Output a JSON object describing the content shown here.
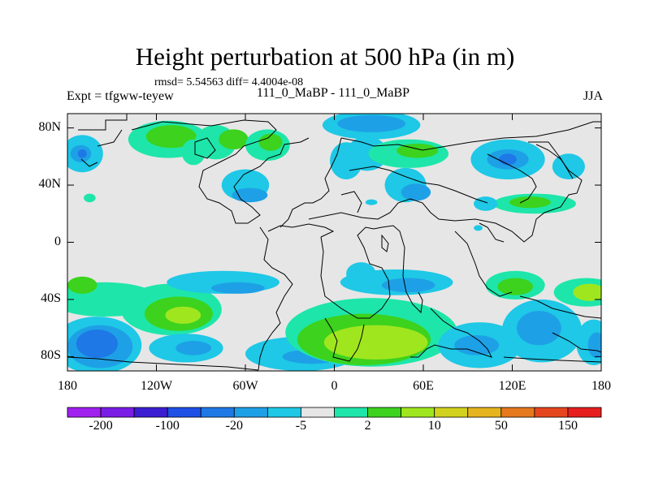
{
  "header": {
    "title": "Height perturbation at 500 hPa (in m)",
    "stats": "rmsd= 5.54563 diff= 4.4004e-08",
    "left_label": "Expt = tfgww-teyew",
    "center_label": "111_0_MaBP - 111_0_MaBP",
    "right_label": "JJA"
  },
  "chart_data": {
    "type": "heatmap",
    "title": "Height perturbation at 500 hPa (in m)",
    "xlabel": "",
    "ylabel": "",
    "xlim": [
      -180,
      180
    ],
    "ylim": [
      -90,
      90
    ],
    "x_ticks": [
      {
        "value": -180,
        "label": "180"
      },
      {
        "value": -120,
        "label": "120W"
      },
      {
        "value": -60,
        "label": "60W"
      },
      {
        "value": 0,
        "label": "0"
      },
      {
        "value": 60,
        "label": "60E"
      },
      {
        "value": 120,
        "label": "120E"
      },
      {
        "value": 180,
        "label": "180"
      }
    ],
    "y_ticks": [
      {
        "value": 80,
        "label": "80N"
      },
      {
        "value": 40,
        "label": "40N"
      },
      {
        "value": 0,
        "label": "0"
      },
      {
        "value": -40,
        "label": "40S"
      },
      {
        "value": -80,
        "label": "80S"
      }
    ],
    "colorbar": {
      "colors": [
        "#a020f0",
        "#7a1ee6",
        "#3c1ed2",
        "#1e50e6",
        "#1e78e6",
        "#1ea0e6",
        "#1ec8e6",
        "#e6e6e6",
        "#1ee6aa",
        "#3cd21e",
        "#a0e61e",
        "#d2d21e",
        "#e6b41e",
        "#e6781e",
        "#e6461e",
        "#e61e1e"
      ],
      "tick_labels": [
        "-200",
        "-100",
        "-20",
        "-5",
        "2",
        "10",
        "50",
        "150"
      ],
      "tick_boundary_index": [
        1,
        3,
        5,
        7,
        9,
        11,
        13,
        15
      ]
    },
    "contour_blobs": [
      {
        "lon": -170,
        "lat": 62,
        "rx": 14,
        "ry": 13,
        "level": 6
      },
      {
        "lon": -171,
        "lat": 62,
        "rx": 7,
        "ry": 6,
        "level": 5
      },
      {
        "lon": -170,
        "lat": 62,
        "rx": 3,
        "ry": 3,
        "level": 4
      },
      {
        "lon": -112,
        "lat": 72,
        "rx": 27,
        "ry": 13,
        "level": 8
      },
      {
        "lon": -110,
        "lat": 74,
        "rx": 17,
        "ry": 8,
        "level": 9
      },
      {
        "lon": -95,
        "lat": 63,
        "rx": 8,
        "ry": 9,
        "level": 8
      },
      {
        "lon": -80,
        "lat": 70,
        "rx": 14,
        "ry": 12,
        "level": 8
      },
      {
        "lon": -68,
        "lat": 72,
        "rx": 10,
        "ry": 7,
        "level": 9
      },
      {
        "lon": -45,
        "lat": 68,
        "rx": 15,
        "ry": 11,
        "level": 8
      },
      {
        "lon": -43,
        "lat": 70,
        "rx": 8,
        "ry": 6,
        "level": 9
      },
      {
        "lon": -60,
        "lat": 40,
        "rx": 16,
        "ry": 11,
        "level": 6
      },
      {
        "lon": -57,
        "lat": 33,
        "rx": 12,
        "ry": 5,
        "level": 5
      },
      {
        "lon": -165,
        "lat": 31,
        "rx": 4,
        "ry": 3,
        "level": 8
      },
      {
        "lon": 25,
        "lat": 82,
        "rx": 33,
        "ry": 10,
        "level": 6
      },
      {
        "lon": 25,
        "lat": 83,
        "rx": 23,
        "ry": 6,
        "level": 5
      },
      {
        "lon": 8,
        "lat": 57,
        "rx": 11,
        "ry": 13,
        "level": 6
      },
      {
        "lon": 22,
        "lat": 62,
        "rx": 14,
        "ry": 12,
        "level": 6
      },
      {
        "lon": 50,
        "lat": 62,
        "rx": 27,
        "ry": 10,
        "level": 8
      },
      {
        "lon": 56,
        "lat": 64,
        "rx": 14,
        "ry": 5,
        "level": 9
      },
      {
        "lon": 48,
        "lat": 40,
        "rx": 14,
        "ry": 12,
        "level": 6
      },
      {
        "lon": 55,
        "lat": 35,
        "rx": 10,
        "ry": 6,
        "level": 5
      },
      {
        "lon": 117,
        "lat": 58,
        "rx": 25,
        "ry": 14,
        "level": 6
      },
      {
        "lon": 117,
        "lat": 58,
        "rx": 14,
        "ry": 7,
        "level": 5
      },
      {
        "lon": 117,
        "lat": 58,
        "rx": 6,
        "ry": 4,
        "level": 4
      },
      {
        "lon": 158,
        "lat": 53,
        "rx": 11,
        "ry": 9,
        "level": 6
      },
      {
        "lon": 135,
        "lat": 27,
        "rx": 28,
        "ry": 7,
        "level": 8
      },
      {
        "lon": 132,
        "lat": 28,
        "rx": 14,
        "ry": 4,
        "level": 9
      },
      {
        "lon": 102,
        "lat": 27,
        "rx": 8,
        "ry": 5,
        "level": 6
      },
      {
        "lon": 25,
        "lat": 28,
        "rx": 4,
        "ry": 2,
        "level": 6
      },
      {
        "lon": 97,
        "lat": 10,
        "rx": 3,
        "ry": 2,
        "level": 6
      },
      {
        "lon": -155,
        "lat": -40,
        "rx": 37,
        "ry": 12,
        "level": 8
      },
      {
        "lon": -170,
        "lat": -30,
        "rx": 10,
        "ry": 6,
        "level": 9
      },
      {
        "lon": -160,
        "lat": -72,
        "rx": 30,
        "ry": 20,
        "level": 6
      },
      {
        "lon": -158,
        "lat": -73,
        "rx": 22,
        "ry": 15,
        "level": 5
      },
      {
        "lon": -160,
        "lat": -71,
        "rx": 14,
        "ry": 10,
        "level": 4
      },
      {
        "lon": -110,
        "lat": -47,
        "rx": 34,
        "ry": 18,
        "level": 8
      },
      {
        "lon": -105,
        "lat": -50,
        "rx": 23,
        "ry": 12,
        "level": 9
      },
      {
        "lon": -102,
        "lat": -51,
        "rx": 12,
        "ry": 6,
        "level": 10
      },
      {
        "lon": -75,
        "lat": -28,
        "rx": 38,
        "ry": 8,
        "level": 6
      },
      {
        "lon": -65,
        "lat": -32,
        "rx": 18,
        "ry": 4,
        "level": 5
      },
      {
        "lon": -100,
        "lat": -74,
        "rx": 25,
        "ry": 10,
        "level": 6
      },
      {
        "lon": -95,
        "lat": -74,
        "rx": 12,
        "ry": 5,
        "level": 5
      },
      {
        "lon": -22,
        "lat": -78,
        "rx": 38,
        "ry": 12,
        "level": 6
      },
      {
        "lon": -15,
        "lat": -80,
        "rx": 20,
        "ry": 5,
        "level": 5
      },
      {
        "lon": 25,
        "lat": -63,
        "rx": 58,
        "ry": 24,
        "level": 8
      },
      {
        "lon": 20,
        "lat": -68,
        "rx": 45,
        "ry": 18,
        "level": 9
      },
      {
        "lon": 28,
        "lat": -70,
        "rx": 35,
        "ry": 12,
        "level": 10
      },
      {
        "lon": 18,
        "lat": -22,
        "rx": 10,
        "ry": 8,
        "level": 6
      },
      {
        "lon": 42,
        "lat": -28,
        "rx": 38,
        "ry": 9,
        "level": 6
      },
      {
        "lon": 50,
        "lat": -30,
        "rx": 18,
        "ry": 5,
        "level": 5
      },
      {
        "lon": 98,
        "lat": -72,
        "rx": 28,
        "ry": 16,
        "level": 6
      },
      {
        "lon": 96,
        "lat": -72,
        "rx": 15,
        "ry": 7,
        "level": 5
      },
      {
        "lon": 122,
        "lat": -30,
        "rx": 20,
        "ry": 10,
        "level": 8
      },
      {
        "lon": 122,
        "lat": -31,
        "rx": 12,
        "ry": 6,
        "level": 9
      },
      {
        "lon": 140,
        "lat": -62,
        "rx": 27,
        "ry": 22,
        "level": 6
      },
      {
        "lon": 138,
        "lat": -60,
        "rx": 15,
        "ry": 12,
        "level": 5
      },
      {
        "lon": 170,
        "lat": -35,
        "rx": 22,
        "ry": 10,
        "level": 8
      },
      {
        "lon": 172,
        "lat": -35,
        "rx": 11,
        "ry": 6,
        "level": 10
      },
      {
        "lon": 175,
        "lat": -70,
        "rx": 12,
        "ry": 16,
        "level": 6
      },
      {
        "lon": 177,
        "lat": -72,
        "rx": 6,
        "ry": 9,
        "level": 5
      }
    ]
  }
}
